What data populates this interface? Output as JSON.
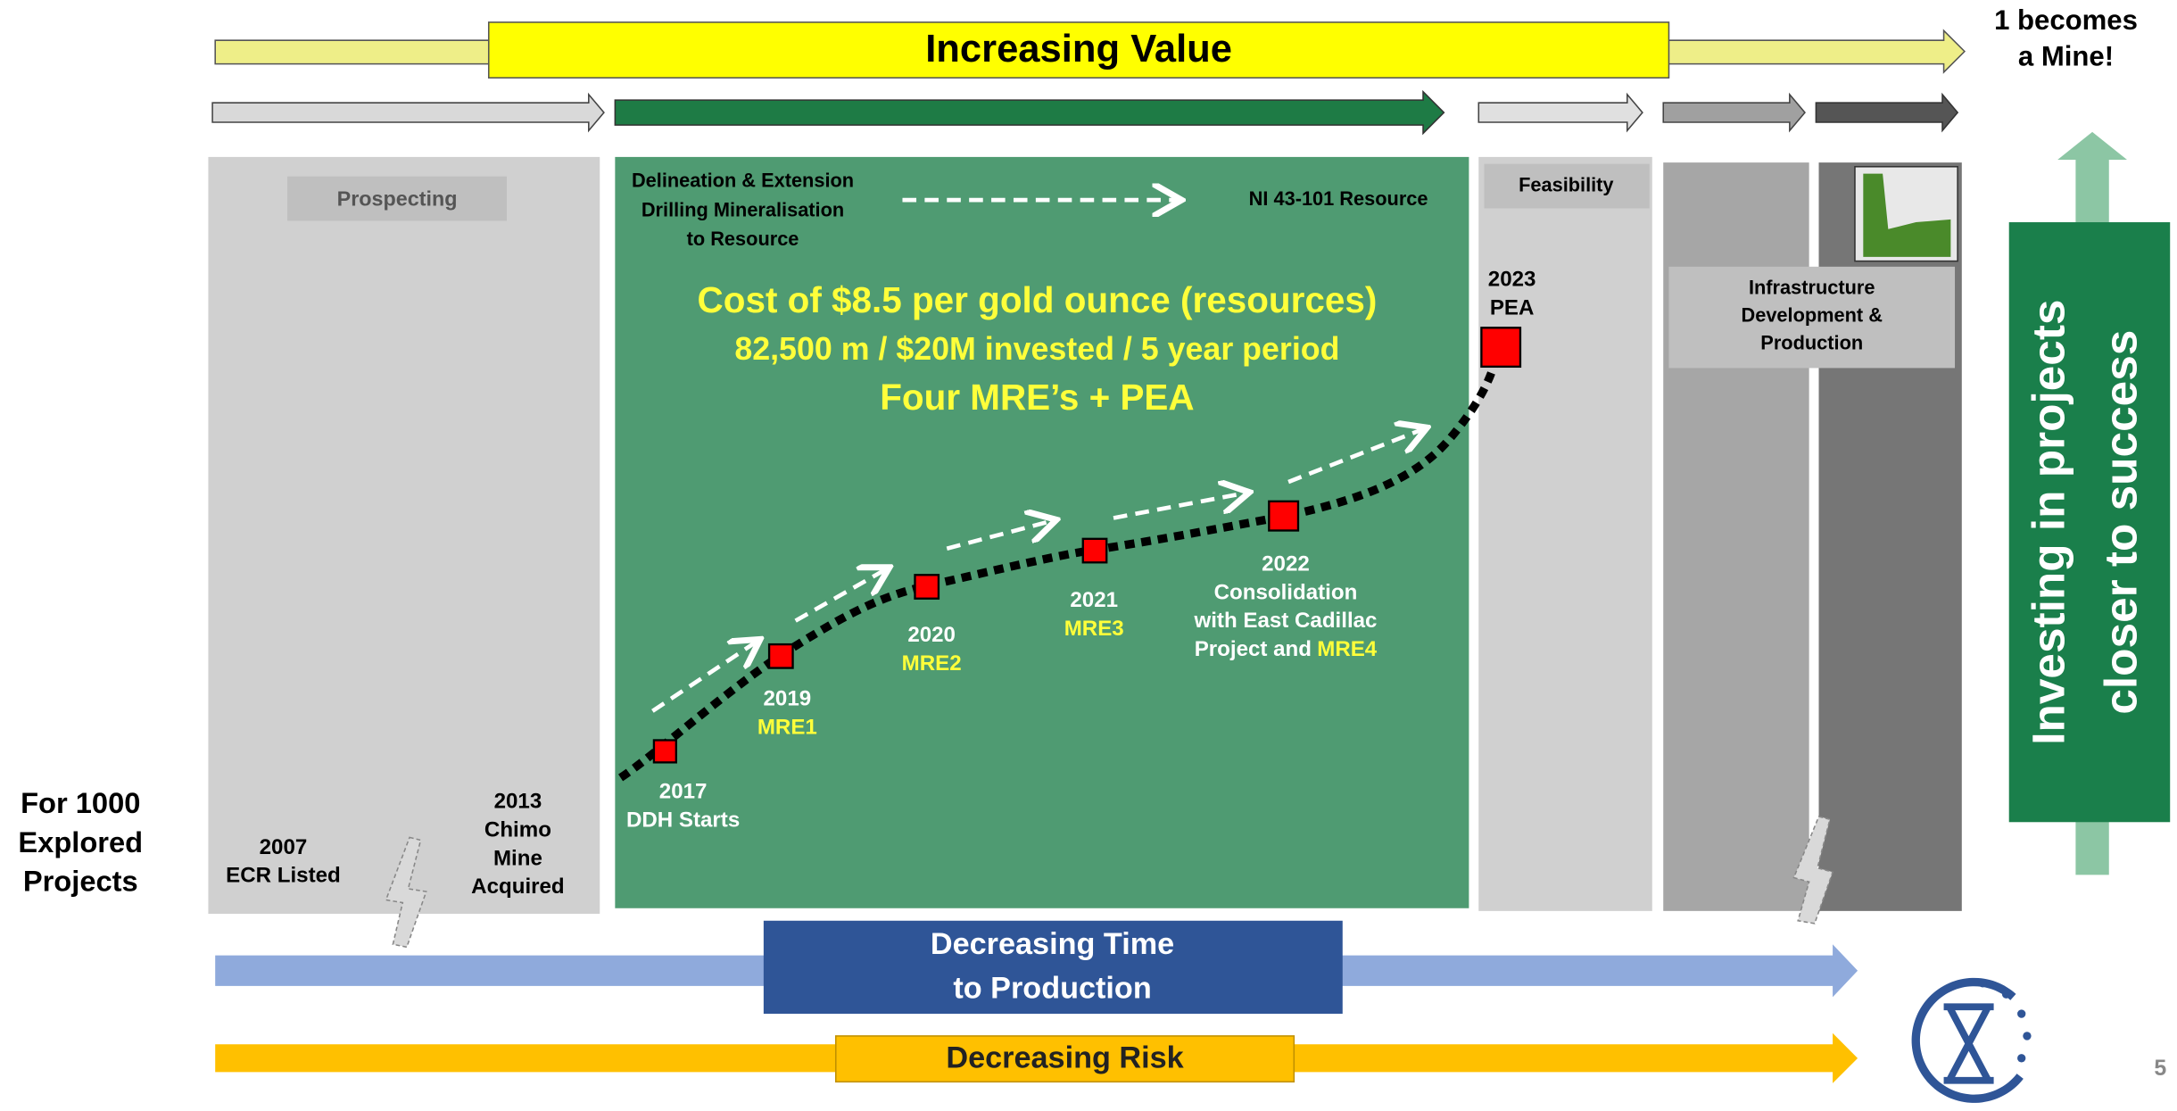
{
  "header": {
    "value_arrow": "Increasing Value",
    "outcome": [
      "1 becomes",
      "a Mine!"
    ]
  },
  "stages": {
    "prospecting": "Prospecting",
    "delineation": [
      "Delineation & Extension",
      "Drilling Mineralisation",
      "to  Resource"
    ],
    "resource": "NI 43-101 Resource",
    "feasibility": "Feasibility",
    "production": [
      "Infrastructure",
      "Development &",
      "Production"
    ]
  },
  "highlight": [
    "Cost of $8.5 per gold ounce (resources)",
    "82,500 m / $20M invested / 5 year period",
    "Four MRE’s + PEA"
  ],
  "left_label": [
    "For 1000",
    "Explored",
    "Projects"
  ],
  "milestones": [
    {
      "lines": [
        "2007",
        "ECR Listed"
      ]
    },
    {
      "lines": [
        "2013",
        "Chimo",
        "Mine",
        "Acquired"
      ]
    },
    {
      "lines": [
        "2017",
        "DDH Starts"
      ]
    },
    {
      "lines": [
        "2019"
      ],
      "mre": "MRE1"
    },
    {
      "lines": [
        "2020"
      ],
      "mre": "MRE2"
    },
    {
      "lines": [
        "2021"
      ],
      "mre": "MRE3"
    },
    {
      "lines": [
        "2022",
        "Consolidation",
        "with East Cadillac",
        "Project and"
      ],
      "mre": "MRE4"
    },
    {
      "lines": [
        "2023",
        "PEA"
      ]
    }
  ],
  "footer": {
    "time": [
      "Decreasing Time",
      "to Production"
    ],
    "risk": "Decreasing Risk"
  },
  "side": [
    "Investing in projects",
    "closer to success"
  ],
  "page_number": "5"
}
